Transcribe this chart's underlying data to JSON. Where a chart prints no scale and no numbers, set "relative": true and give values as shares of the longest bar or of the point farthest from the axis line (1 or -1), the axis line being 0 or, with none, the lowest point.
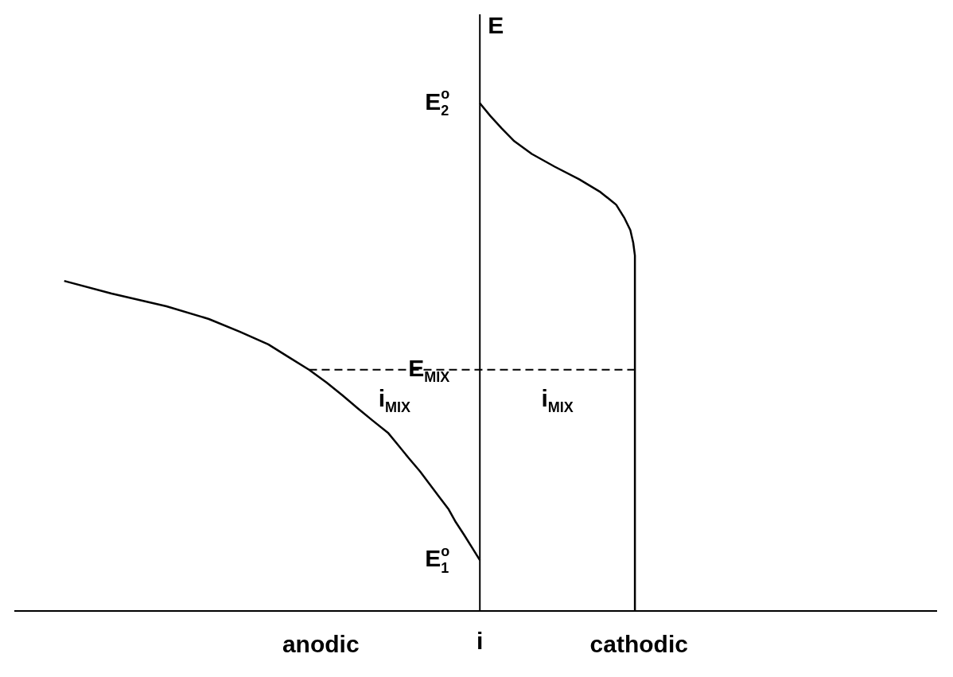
{
  "chart_data": {
    "type": "line",
    "orientation": "horizontal",
    "relative": true,
    "xlabel": "i",
    "ylabel": "E",
    "marker": "none",
    "categories": [
      null,
      null,
      null,
      null,
      null,
      null,
      null,
      "E$^{o}$$_{2}$",
      null,
      null,
      null,
      null,
      null,
      null,
      null,
      null,
      null,
      null,
      null,
      null,
      null,
      null,
      null,
      null,
      null,
      null,
      null,
      null,
      "E$_{MIX}$",
      null,
      null,
      null,
      null,
      null,
      null,
      null,
      null,
      null,
      null,
      null,
      null,
      null,
      null,
      "E$^{o}$$_{1}$",
      null,
      null,
      null,
      null
    ],
    "series": [
      {
        "color": "#000000",
        "values": [
          null,
          null,
          null,
          null,
          null,
          null,
          null,
          null,
          null,
          null,
          null,
          null,
          null,
          null,
          null,
          null,
          null,
          null,
          null,
          null,
          null,
          -1,
          -0.886,
          -0.754,
          -0.652,
          -0.578,
          -0.509,
          -0.46,
          -0.411,
          -0.369,
          -0.331,
          -0.295,
          -0.258,
          -0.22,
          -0.195,
          -0.17,
          -0.144,
          -0.121,
          -0.098,
          -0.075,
          -0.058,
          -0.038,
          -0.019,
          0,
          null,
          null,
          null,
          null
        ]
      },
      {
        "color": "#000000",
        "values": [
          null,
          null,
          null,
          null,
          null,
          null,
          null,
          0,
          0.025,
          0.053,
          0.083,
          0.125,
          0.18,
          0.239,
          0.29,
          0.328,
          0.347,
          0.362,
          0.369,
          0.373,
          0.373,
          0.373,
          0.373,
          0.373,
          0.373,
          0.373,
          0.373,
          0.373,
          0.373,
          0.373,
          0.373,
          0.373,
          0.373,
          0.373,
          0.373,
          0.373,
          0.373,
          0.373,
          0.373,
          0.373,
          0.373,
          0.373,
          0.373,
          0.373,
          0.373,
          0.373,
          0.373,
          0.373
        ]
      }
    ],
    "ref_lines": [
      {
        "axis": "y",
        "value": "E$_{MIX}$",
        "line_style": "dashed",
        "color": "#000000"
      }
    ],
    "annotations": [
      "anodic",
      "cathodic",
      "i$_{MIX}$",
      "i$_{MIX}$"
    ]
  }
}
